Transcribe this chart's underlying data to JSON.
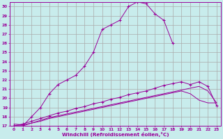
{
  "bg_color": "#c8ecec",
  "grid_color": "#aaaaaa",
  "line_color": "#990099",
  "xlabel": "Windchill (Refroidissement éolien,°C)",
  "xlim": [
    -0.5,
    23.5
  ],
  "ylim": [
    17,
    30.5
  ],
  "yticks": [
    17,
    18,
    19,
    20,
    21,
    22,
    23,
    24,
    25,
    26,
    27,
    28,
    29,
    30
  ],
  "xticks": [
    0,
    1,
    2,
    3,
    4,
    5,
    6,
    7,
    8,
    9,
    10,
    11,
    12,
    13,
    14,
    15,
    16,
    17,
    18,
    19,
    20,
    21,
    22,
    23
  ],
  "curves": [
    {
      "x": [
        0,
        1,
        2,
        3,
        4,
        5,
        6,
        7,
        8,
        9,
        10,
        11,
        12,
        13,
        14,
        15,
        16,
        17,
        18
      ],
      "y": [
        17.0,
        17.0,
        18.0,
        19.0,
        20.5,
        21.5,
        22.0,
        22.5,
        23.5,
        25.0,
        27.5,
        28.0,
        28.5,
        30.0,
        30.5,
        30.3,
        29.2,
        28.5,
        26.0
      ],
      "marker": true
    },
    {
      "x": [
        0,
        1,
        2,
        3,
        4,
        5,
        6,
        7,
        8,
        9,
        10,
        11,
        12,
        13,
        14,
        15,
        16,
        17,
        18,
        19,
        20,
        21,
        22,
        23
      ],
      "y": [
        17.0,
        17.0,
        17.3,
        17.6,
        17.9,
        18.1,
        18.3,
        18.5,
        18.7,
        18.9,
        19.1,
        19.3,
        19.5,
        19.7,
        19.9,
        20.1,
        20.3,
        20.5,
        20.7,
        20.9,
        21.1,
        21.3,
        20.8,
        19.5
      ],
      "marker": false
    },
    {
      "x": [
        0,
        1,
        2,
        3,
        4,
        5,
        6,
        7,
        8,
        9,
        10,
        11,
        12,
        13,
        14,
        15,
        16,
        17,
        18,
        19,
        20,
        21,
        22,
        23
      ],
      "y": [
        17.0,
        17.2,
        17.5,
        17.8,
        18.1,
        18.4,
        18.6,
        18.9,
        19.1,
        19.4,
        19.6,
        19.9,
        20.1,
        20.4,
        20.6,
        20.8,
        21.1,
        21.4,
        21.6,
        21.8,
        21.5,
        21.8,
        21.3,
        19.2
      ],
      "marker": true
    },
    {
      "x": [
        0,
        1,
        2,
        3,
        4,
        5,
        6,
        7,
        8,
        9,
        10,
        11,
        12,
        13,
        14,
        15,
        16,
        17,
        18,
        19,
        20,
        21,
        22,
        23
      ],
      "y": [
        17.2,
        17.1,
        17.3,
        17.5,
        17.8,
        18.0,
        18.2,
        18.4,
        18.6,
        18.8,
        19.0,
        19.2,
        19.4,
        19.6,
        19.8,
        20.0,
        20.2,
        20.4,
        20.6,
        20.8,
        20.5,
        19.8,
        19.5,
        19.5
      ],
      "marker": false
    }
  ]
}
